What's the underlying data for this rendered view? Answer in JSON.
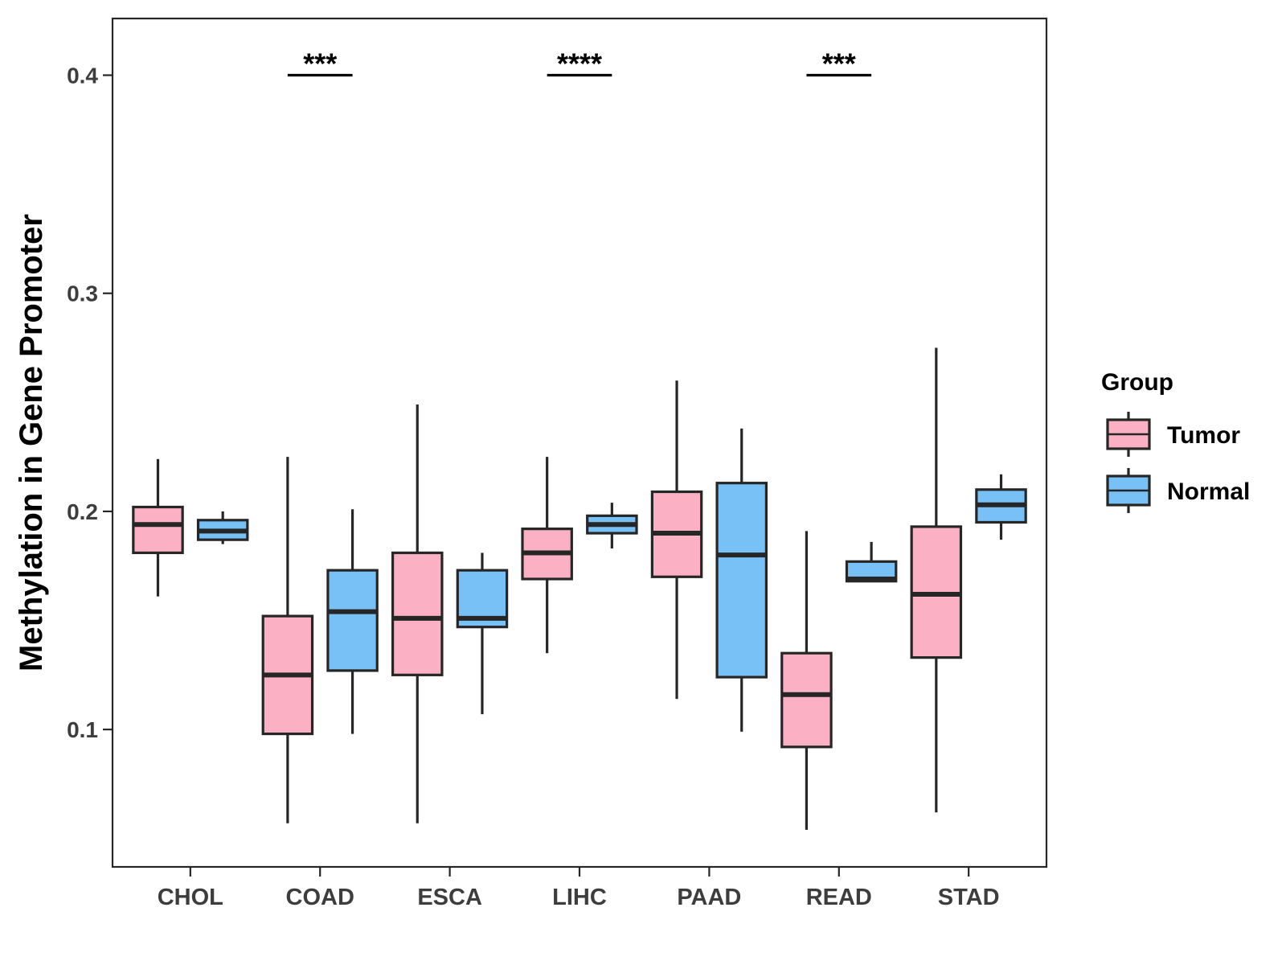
{
  "chart_data": {
    "type": "boxplot",
    "title": "",
    "xlabel": "",
    "ylabel": "Methylation in Gene Promoter",
    "ylim": [
      0.037,
      0.426
    ],
    "yticks": [
      0.1,
      0.2,
      0.3,
      0.4
    ],
    "ytick_labels": [
      "0.1",
      "0.2",
      "0.3",
      "0.4"
    ],
    "grid": false,
    "categories": [
      "CHOL",
      "COAD",
      "ESCA",
      "LIHC",
      "PAAD",
      "READ",
      "STAD"
    ],
    "series": [
      {
        "name": "Tumor",
        "color": "#FBB1C3",
        "boxes": [
          {
            "whisker_low": 0.161,
            "q1": 0.181,
            "median": 0.194,
            "q3": 0.202,
            "whisker_high": 0.224
          },
          {
            "whisker_low": 0.057,
            "q1": 0.098,
            "median": 0.125,
            "q3": 0.152,
            "whisker_high": 0.225
          },
          {
            "whisker_low": 0.057,
            "q1": 0.125,
            "median": 0.151,
            "q3": 0.181,
            "whisker_high": 0.249
          },
          {
            "whisker_low": 0.135,
            "q1": 0.169,
            "median": 0.181,
            "q3": 0.192,
            "whisker_high": 0.225
          },
          {
            "whisker_low": 0.114,
            "q1": 0.17,
            "median": 0.19,
            "q3": 0.209,
            "whisker_high": 0.26
          },
          {
            "whisker_low": 0.054,
            "q1": 0.092,
            "median": 0.116,
            "q3": 0.135,
            "whisker_high": 0.191
          },
          {
            "whisker_low": 0.062,
            "q1": 0.133,
            "median": 0.162,
            "q3": 0.193,
            "whisker_high": 0.275
          }
        ]
      },
      {
        "name": "Normal",
        "color": "#78C1F6",
        "boxes": [
          {
            "whisker_low": 0.185,
            "q1": 0.187,
            "median": 0.191,
            "q3": 0.196,
            "whisker_high": 0.2
          },
          {
            "whisker_low": 0.098,
            "q1": 0.127,
            "median": 0.154,
            "q3": 0.173,
            "whisker_high": 0.201
          },
          {
            "whisker_low": 0.107,
            "q1": 0.147,
            "median": 0.151,
            "q3": 0.173,
            "whisker_high": 0.181
          },
          {
            "whisker_low": 0.183,
            "q1": 0.19,
            "median": 0.194,
            "q3": 0.198,
            "whisker_high": 0.204
          },
          {
            "whisker_low": 0.099,
            "q1": 0.124,
            "median": 0.18,
            "q3": 0.213,
            "whisker_high": 0.238
          },
          {
            "whisker_low": 0.168,
            "q1": 0.168,
            "median": 0.169,
            "q3": 0.177,
            "whisker_high": 0.186
          },
          {
            "whisker_low": 0.187,
            "q1": 0.195,
            "median": 0.203,
            "q3": 0.21,
            "whisker_high": 0.217
          }
        ]
      }
    ],
    "significance": [
      {
        "category": "COAD",
        "label": "***",
        "y": 0.4
      },
      {
        "category": "LIHC",
        "label": "****",
        "y": 0.4
      },
      {
        "category": "READ",
        "label": "***",
        "y": 0.4
      }
    ],
    "legend": {
      "title": "Group",
      "position": "right",
      "entries": [
        "Tumor",
        "Normal"
      ]
    }
  }
}
